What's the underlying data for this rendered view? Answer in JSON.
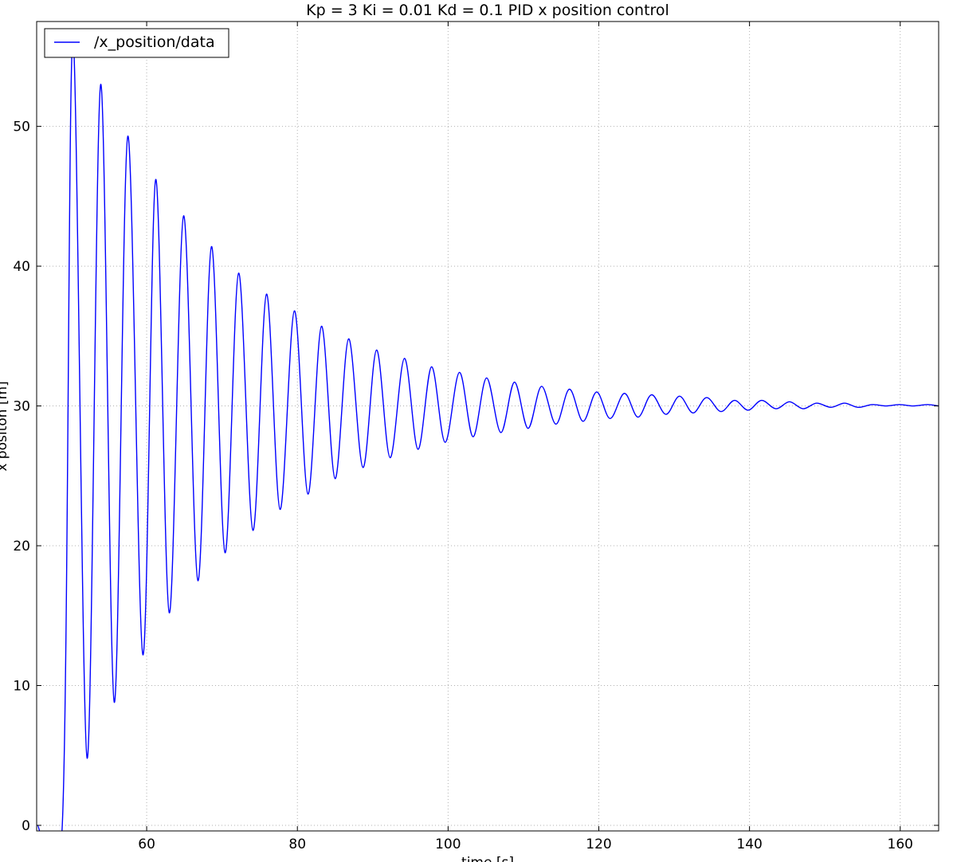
{
  "chart_data": {
    "type": "line",
    "title": "Kp = 3 Ki = 0.01 Kd = 0.1 PID x position control",
    "xlabel": "time [s]",
    "ylabel": "x positon [m]",
    "xlim": [
      45.4,
      165.1
    ],
    "ylim": [
      -0.4,
      57.5
    ],
    "xticks": [
      60,
      80,
      100,
      120,
      140,
      160
    ],
    "yticks": [
      0,
      10,
      20,
      30,
      40,
      50
    ],
    "grid": true,
    "legend": {
      "position": "top-left",
      "entries": [
        "/x_position/data"
      ]
    },
    "series": [
      {
        "name": "/x_position/data",
        "color": "#0000ff",
        "x": [
          45.5,
          48.8,
          50.2,
          52.1,
          53.9,
          55.7,
          57.5,
          59.5,
          61.2,
          63.0,
          64.9,
          66.8,
          68.6,
          70.4,
          72.2,
          74.1,
          75.9,
          77.7,
          79.6,
          81.4,
          83.2,
          85.0,
          86.8,
          88.7,
          90.5,
          92.3,
          94.2,
          96.0,
          97.8,
          99.6,
          101.5,
          103.3,
          105.1,
          107.0,
          108.8,
          110.6,
          112.4,
          114.3,
          116.1,
          117.9,
          119.7,
          121.5,
          123.4,
          125.2,
          127.0,
          128.9,
          130.7,
          132.5,
          134.3,
          136.2,
          138.0,
          139.8,
          141.6,
          143.5,
          145.3,
          147.1,
          148.9,
          150.8,
          152.6,
          154.4,
          156.3,
          158.1,
          159.9,
          161.7,
          163.6,
          165.1
        ],
        "y": [
          0.0,
          0.0,
          56.3,
          4.8,
          53.0,
          8.8,
          49.3,
          12.2,
          46.2,
          15.2,
          43.6,
          17.5,
          41.4,
          19.5,
          39.5,
          21.1,
          38.0,
          22.6,
          36.8,
          23.7,
          35.7,
          24.8,
          34.8,
          25.6,
          34.0,
          26.3,
          33.4,
          26.9,
          32.8,
          27.4,
          32.4,
          27.8,
          32.0,
          28.1,
          31.7,
          28.4,
          31.4,
          28.7,
          31.2,
          28.9,
          31.0,
          29.1,
          30.9,
          29.2,
          30.8,
          29.4,
          30.7,
          29.5,
          30.6,
          29.6,
          30.4,
          29.7,
          30.4,
          29.8,
          30.3,
          29.8,
          30.2,
          29.9,
          30.2,
          29.9,
          30.1,
          30.0,
          30.1,
          30.0,
          30.1,
          30.0
        ]
      }
    ]
  }
}
